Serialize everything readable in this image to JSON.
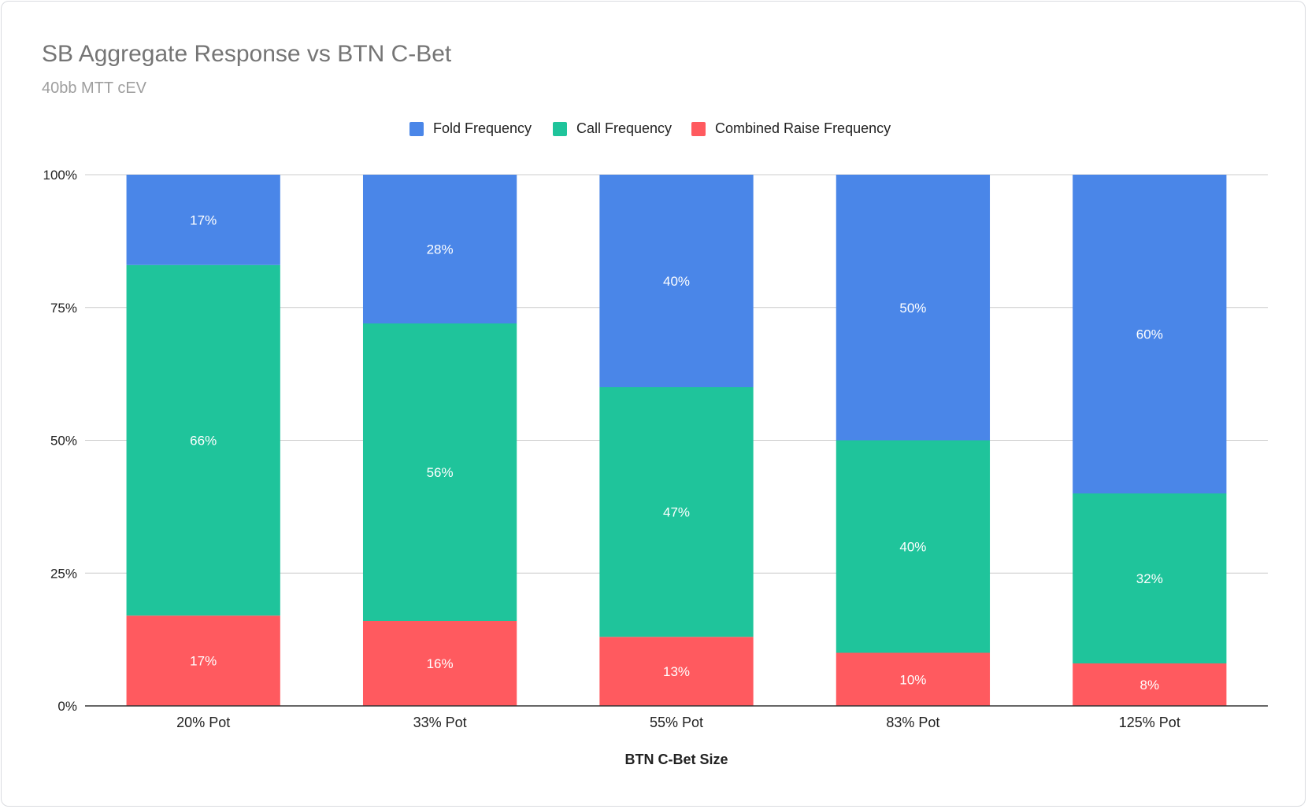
{
  "chart_data": {
    "type": "bar",
    "stacked": true,
    "title": "SB Aggregate Response vs BTN C-Bet",
    "subtitle": "40bb MTT cEV",
    "xlabel": "BTN C-Bet Size",
    "ylabel": "",
    "ylim": [
      0,
      100
    ],
    "y_ticks": [
      "0%",
      "25%",
      "50%",
      "75%",
      "100%"
    ],
    "y_tick_values": [
      0,
      25,
      50,
      75,
      100
    ],
    "grid": true,
    "legend_position": "top-center",
    "categories": [
      "20% Pot",
      "33% Pot",
      "55% Pot",
      "83% Pot",
      "125% Pot"
    ],
    "series": [
      {
        "name": "Combined Raise Frequency",
        "color": "#ff5a5f",
        "values": [
          17,
          16,
          13,
          10,
          8
        ],
        "labels": [
          "17%",
          "16%",
          "13%",
          "10%",
          "8%"
        ]
      },
      {
        "name": "Call Frequency",
        "color": "#1fc49b",
        "values": [
          66,
          56,
          47,
          40,
          32
        ],
        "labels": [
          "66%",
          "56%",
          "47%",
          "40%",
          "32%"
        ]
      },
      {
        "name": "Fold Frequency",
        "color": "#4a86e8",
        "values": [
          17,
          28,
          40,
          50,
          60
        ],
        "labels": [
          "17%",
          "28%",
          "40%",
          "50%",
          "60%"
        ]
      }
    ],
    "legend_order": [
      "Fold Frequency",
      "Call Frequency",
      "Combined Raise Frequency"
    ]
  }
}
